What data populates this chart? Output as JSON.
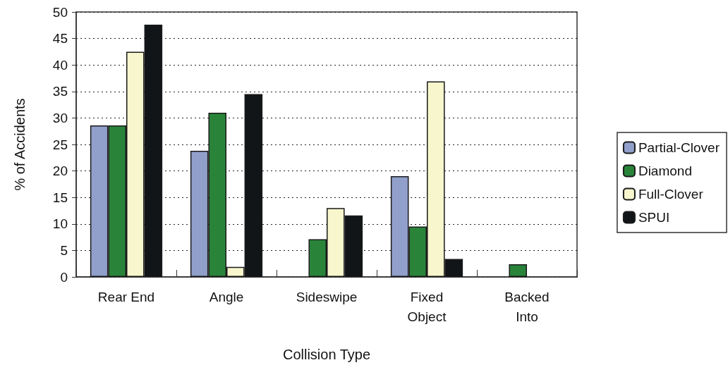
{
  "chart_data": {
    "type": "bar",
    "xlabel": "Collision Type",
    "ylabel": "% of Accidents",
    "categories": [
      "Rear End",
      "Angle",
      "Sideswipe",
      "Fixed\nObject",
      "Backed\nInto"
    ],
    "series": [
      {
        "name": "Partial-Clover",
        "color": "#919fcb",
        "values": [
          28.6,
          23.8,
          null,
          19.0,
          null
        ]
      },
      {
        "name": "Diamond",
        "color": "#29843a",
        "values": [
          28.6,
          31.0,
          7.1,
          9.5,
          2.4
        ]
      },
      {
        "name": "Full-Clover",
        "color": "#f8f6cc",
        "values": [
          42.5,
          1.9,
          13.0,
          36.9,
          null
        ]
      },
      {
        "name": "SPUI",
        "color": "#111518",
        "values": [
          47.6,
          34.5,
          11.6,
          3.4,
          null
        ]
      }
    ],
    "ylim": [
      0,
      50
    ],
    "yticks": [
      0,
      5,
      10,
      15,
      20,
      25,
      30,
      35,
      40,
      45,
      50
    ],
    "grid": "y",
    "legend": "right"
  }
}
